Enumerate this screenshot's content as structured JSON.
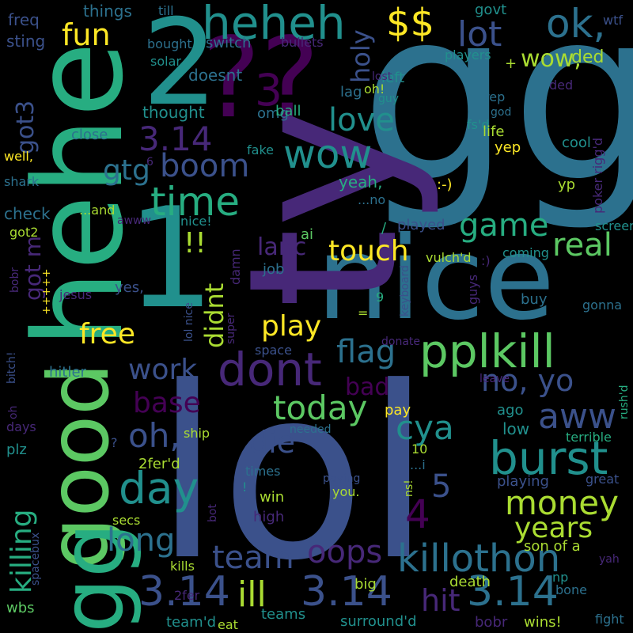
{
  "palette": {
    "background": "#000000",
    "colors": [
      "#440154",
      "#472878",
      "#3b518b",
      "#2c718e",
      "#21908d",
      "#27ad81",
      "#5cc863",
      "#aadc32",
      "#fde725"
    ]
  },
  "words": [
    {
      "text": "gg",
      "color": "#2c718e"
    },
    {
      "text": "lol",
      "color": "#3b518b"
    },
    {
      "text": "nice",
      "color": "#2c718e"
    },
    {
      "text": "ty",
      "color": "#472878"
    },
    {
      "text": "hehe",
      "color": "#27ad81"
    },
    {
      "text": "good",
      "color": "#5cc863"
    },
    {
      "text": "gg",
      "color": "#27ad81"
    },
    {
      "text": "1",
      "color": "#21908d"
    },
    {
      "text": "2",
      "color": "#21908d"
    },
    {
      "text": "??",
      "color": "#440154"
    },
    {
      "text": "heheh",
      "color": "#21908d"
    },
    {
      "text": "ok,",
      "color": "#2c718e"
    },
    {
      "text": "$$",
      "color": "#fde725"
    },
    {
      "text": "lot",
      "color": "#3b518b"
    },
    {
      "text": "fun",
      "color": "#fde725"
    },
    {
      "text": "3",
      "color": "#440154"
    },
    {
      "text": "wow,",
      "color": "#aadc32"
    },
    {
      "text": "ded",
      "color": "#aadc32"
    },
    {
      "text": "wow",
      "color": "#21908d"
    },
    {
      "text": "3.14",
      "color": "#472878"
    },
    {
      "text": "boom",
      "color": "#3b518b"
    },
    {
      "text": "time",
      "color": "#27ad81"
    },
    {
      "text": "gtg",
      "color": "#2c718e"
    },
    {
      "text": "love",
      "color": "#21908d"
    },
    {
      "text": "holy",
      "color": "#3b518b"
    },
    {
      "text": "game",
      "color": "#27ad81"
    },
    {
      "text": "real",
      "color": "#5cc863"
    },
    {
      "text": "touch",
      "color": "#fde725"
    },
    {
      "text": "!!",
      "color": "#aadc32"
    },
    {
      "text": "didnt",
      "color": "#aadc32"
    },
    {
      "text": "lanc",
      "color": "#472878"
    },
    {
      "text": "got m",
      "color": "#472878"
    },
    {
      "text": "got3",
      "color": "#3b518b"
    },
    {
      "text": "pplkill",
      "color": "#5cc863"
    },
    {
      "text": "dont",
      "color": "#472878"
    },
    {
      "text": "flag",
      "color": "#2c718e"
    },
    {
      "text": "play",
      "color": "#fde725"
    },
    {
      "text": "free",
      "color": "#fde725"
    },
    {
      "text": "work",
      "color": "#3b518b"
    },
    {
      "text": "no, yo",
      "color": "#3b518b"
    },
    {
      "text": "aww",
      "color": "#3b518b"
    },
    {
      "text": "today",
      "color": "#5cc863"
    },
    {
      "text": "bad",
      "color": "#440154"
    },
    {
      "text": "base",
      "color": "#440154"
    },
    {
      "text": "oh,",
      "color": "#3b518b"
    },
    {
      "text": "day",
      "color": "#21908d"
    },
    {
      "text": "cya",
      "color": "#21908d"
    },
    {
      "text": "die",
      "color": "#3b518b"
    },
    {
      "text": "burst",
      "color": "#21908d"
    },
    {
      "text": "money",
      "color": "#aadc32"
    },
    {
      "text": "years",
      "color": "#aadc32"
    },
    {
      "text": "5",
      "color": "#3b518b"
    },
    {
      "text": "4",
      "color": "#440154"
    },
    {
      "text": "long",
      "color": "#2c718e"
    },
    {
      "text": "killing",
      "color": "#27ad81"
    },
    {
      "text": "oops",
      "color": "#472878"
    },
    {
      "text": "team",
      "color": "#3b518b"
    },
    {
      "text": "killothon",
      "color": "#2c718e"
    },
    {
      "text": "3.14",
      "color": "#3b518b"
    },
    {
      "text": "ill",
      "color": "#aadc32"
    },
    {
      "text": "3.14",
      "color": "#3b518b"
    },
    {
      "text": "hit",
      "color": "#472878"
    },
    {
      "text": "3.14",
      "color": "#2c718e"
    },
    {
      "text": "freq",
      "color": "#3b518b"
    },
    {
      "text": "sting",
      "color": "#3b518b"
    },
    {
      "text": "things",
      "color": "#2c718e"
    },
    {
      "text": "till",
      "color": "#2c718e"
    },
    {
      "text": "govt",
      "color": "#21908d"
    },
    {
      "text": "wtf",
      "color": "#3b518b"
    },
    {
      "text": "switch",
      "color": "#2c718e"
    },
    {
      "text": "bullets",
      "color": "#472878"
    },
    {
      "text": "bought",
      "color": "#2c718e"
    },
    {
      "text": "solar",
      "color": "#21908d"
    },
    {
      "text": "players",
      "color": "#21908d"
    },
    {
      "text": "+",
      "color": "#aadc32"
    },
    {
      "text": "doesnt",
      "color": "#2c718e"
    },
    {
      "text": "left",
      "color": "#21908d"
    },
    {
      "text": "lost",
      "color": "#472878"
    },
    {
      "text": "oh!",
      "color": "#aadc32"
    },
    {
      "text": "guy",
      "color": "#21908d"
    },
    {
      "text": "lag",
      "color": "#2c718e"
    },
    {
      "text": "rep",
      "color": "#2c718e"
    },
    {
      "text": "god",
      "color": "#2c718e"
    },
    {
      "text": "thought",
      "color": "#21908d"
    },
    {
      "text": "omg",
      "color": "#2c718e"
    },
    {
      "text": "ball",
      "color": "#27ad81"
    },
    {
      "text": "poker rigg'd",
      "color": "#472878"
    },
    {
      "text": "fs'd",
      "color": "#21908d"
    },
    {
      "text": "life",
      "color": "#aadc32"
    },
    {
      "text": "yep",
      "color": "#fde725"
    },
    {
      "text": "close",
      "color": "#2c718e"
    },
    {
      "text": "fake",
      "color": "#21908d"
    },
    {
      "text": "cool",
      "color": "#21908d"
    },
    {
      "text": "well,",
      "color": "#fde725"
    },
    {
      "text": "shark",
      "color": "#2c718e"
    },
    {
      "text": "6",
      "color": "#472878"
    },
    {
      "text": "yeah,",
      "color": "#27ad81"
    },
    {
      "text": ":-)",
      "color": "#fde725"
    },
    {
      "text": "yp",
      "color": "#aadc32"
    },
    {
      "text": "check",
      "color": "#2c718e"
    },
    {
      "text": "...no",
      "color": "#2c718e"
    },
    {
      "text": "...and",
      "color": "#aadc32"
    },
    {
      "text": "awww",
      "color": "#472878"
    },
    {
      "text": "nice!",
      "color": "#21908d"
    },
    {
      "text": "got2",
      "color": "#aadc32"
    },
    {
      "text": "/",
      "color": "#27ad81"
    },
    {
      "text": "played",
      "color": "#3b518b"
    },
    {
      "text": "screen",
      "color": "#21908d"
    },
    {
      "text": "ai",
      "color": "#5cc863"
    },
    {
      "text": "vulch'd",
      "color": "#aadc32"
    },
    {
      "text": ":)",
      "color": "#472878"
    },
    {
      "text": "coming",
      "color": "#21908d"
    },
    {
      "text": "job",
      "color": "#2c718e"
    },
    {
      "text": "damn",
      "color": "#472878"
    },
    {
      "text": "keyboard",
      "color": "#3b518b"
    },
    {
      "text": "guys",
      "color": "#472878"
    },
    {
      "text": "ded",
      "color": "#472878"
    },
    {
      "text": "yes,",
      "color": "#3b518b"
    },
    {
      "text": "9",
      "color": "#27ad81"
    },
    {
      "text": "buy",
      "color": "#2c718e"
    },
    {
      "text": "gonna",
      "color": "#2c718e"
    },
    {
      "text": "bobr",
      "color": "#472878"
    },
    {
      "text": "jesus",
      "color": "#472878"
    },
    {
      "text": "+++++",
      "color": "#fde725"
    },
    {
      "text": "=",
      "color": "#aadc32"
    },
    {
      "text": "lol nice",
      "color": "#3b518b"
    },
    {
      "text": "super",
      "color": "#472878"
    },
    {
      "text": "bitch!",
      "color": "#3b518b"
    },
    {
      "text": "hitler",
      "color": "#2c718e"
    },
    {
      "text": "space",
      "color": "#3b518b"
    },
    {
      "text": "donate",
      "color": "#472878"
    },
    {
      "text": "leave",
      "color": "#472878"
    },
    {
      "text": "rush'd",
      "color": "#27ad81"
    },
    {
      "text": "oh",
      "color": "#472878"
    },
    {
      "text": "pay",
      "color": "#fde725"
    },
    {
      "text": "ago",
      "color": "#21908d"
    },
    {
      "text": "days",
      "color": "#472878"
    },
    {
      "text": "needed",
      "color": "#2c718e"
    },
    {
      "text": "low",
      "color": "#21908d"
    },
    {
      "text": "terrible",
      "color": "#27ad81"
    },
    {
      "text": "plz",
      "color": "#21908d"
    },
    {
      "text": "?",
      "color": "#3b518b"
    },
    {
      "text": "ship",
      "color": "#aadc32"
    },
    {
      "text": "2fer'd",
      "color": "#aadc32"
    },
    {
      "text": "...i",
      "color": "#2c718e"
    },
    {
      "text": "10",
      "color": "#aadc32"
    },
    {
      "text": "times",
      "color": "#2c718e"
    },
    {
      "text": "playing",
      "color": "#3b518b"
    },
    {
      "text": "great",
      "color": "#3b518b"
    },
    {
      "text": "win",
      "color": "#aadc32"
    },
    {
      "text": "!",
      "color": "#21908d"
    },
    {
      "text": "paying",
      "color": "#3b518b"
    },
    {
      "text": "you.",
      "color": "#aadc32"
    },
    {
      "text": "ns!",
      "color": "#aadc32"
    },
    {
      "text": "bot",
      "color": "#472878"
    },
    {
      "text": "high",
      "color": "#472878"
    },
    {
      "text": "secs",
      "color": "#aadc32"
    },
    {
      "text": "spacebux",
      "color": "#3b518b"
    },
    {
      "text": "son of a",
      "color": "#aadc32"
    },
    {
      "text": "yah",
      "color": "#472878"
    },
    {
      "text": "kills",
      "color": "#aadc32"
    },
    {
      "text": "np",
      "color": "#21908d"
    },
    {
      "text": "bone",
      "color": "#2c718e"
    },
    {
      "text": "big",
      "color": "#aadc32"
    },
    {
      "text": "death",
      "color": "#aadc32"
    },
    {
      "text": "2fer",
      "color": "#472878"
    },
    {
      "text": "wbs",
      "color": "#5cc863"
    },
    {
      "text": "teams",
      "color": "#21908d"
    },
    {
      "text": "surround'd",
      "color": "#21908d"
    },
    {
      "text": "wins!",
      "color": "#aadc32"
    },
    {
      "text": "fight",
      "color": "#2c718e"
    },
    {
      "text": "team'd",
      "color": "#21908d"
    },
    {
      "text": "eat",
      "color": "#aadc32"
    },
    {
      "text": "bobr",
      "color": "#472878"
    }
  ]
}
